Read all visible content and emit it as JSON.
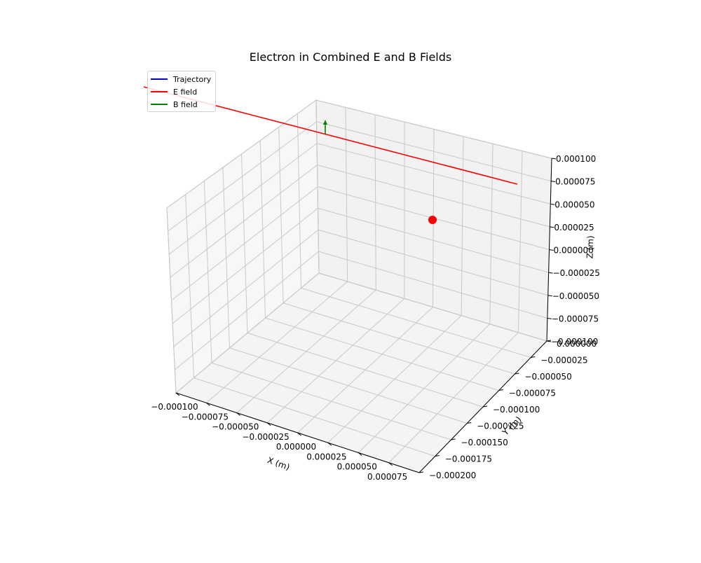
{
  "chart_data": {
    "type": "line",
    "projection": "3d",
    "title": "Electron in Combined E and B Fields",
    "xlabel": "X (m)",
    "ylabel": "Y (m)",
    "zlabel": "Z (m)",
    "xlim": [
      -0.0001,
      0.0001
    ],
    "ylim": [
      -0.0002,
      0.0
    ],
    "zlim": [
      -0.0001,
      0.0001
    ],
    "xticks": [
      "−0.000100",
      "−0.000075",
      "−0.000050",
      "−0.000025",
      "0.000000",
      "0.000025",
      "0.000050",
      "0.000075"
    ],
    "yticks": [
      "−0.000200",
      "−0.000175",
      "−0.000150",
      "−0.000125",
      "−0.000100",
      "−0.000075",
      "−0.000050",
      "−0.000025",
      "0.000000"
    ],
    "zticks": [
      "−0.000100",
      "−0.000075",
      "−0.000050",
      "−0.000025",
      "0.000000",
      "0.000025",
      "0.000050",
      "0.000075",
      "0.000100"
    ],
    "grid": true,
    "legend_placement": "top-left",
    "series": [
      {
        "name": "Trajectory",
        "color": "#0000cc"
      },
      {
        "name": "E field",
        "color": "#ff0000"
      },
      {
        "name": "B field",
        "color": "#008000"
      }
    ],
    "marker": {
      "color": "#ff0000"
    }
  }
}
